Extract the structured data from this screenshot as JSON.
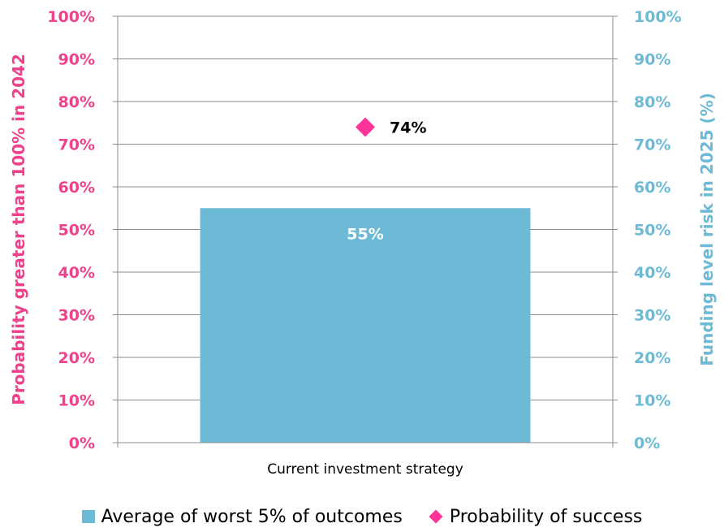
{
  "colors": {
    "bar": "#6cbad5",
    "marker": "#ff3399",
    "left_axis": "#f0418c",
    "right_axis": "#6cbad5",
    "grid": "#8c8c8c"
  },
  "chart_data": {
    "type": "bar",
    "categories": [
      "Current investment strategy"
    ],
    "series": [
      {
        "name": "Average of worst 5% of outcomes",
        "kind": "bar",
        "axis": "right",
        "values": [
          55
        ],
        "labels": [
          "55%"
        ]
      },
      {
        "name": "Probability of success",
        "kind": "marker",
        "axis": "left",
        "values": [
          74
        ],
        "labels": [
          "74%"
        ]
      }
    ],
    "ylabel_left": "Probability greater than 100% in 2042",
    "ylabel_right": "Funding level risk in 2025 (%)",
    "ylim": [
      0,
      100
    ],
    "yticks": [
      "0%",
      "10%",
      "20%",
      "30%",
      "40%",
      "50%",
      "60%",
      "70%",
      "80%",
      "90%",
      "100%"
    ],
    "grid": true,
    "legend": "bottom"
  }
}
